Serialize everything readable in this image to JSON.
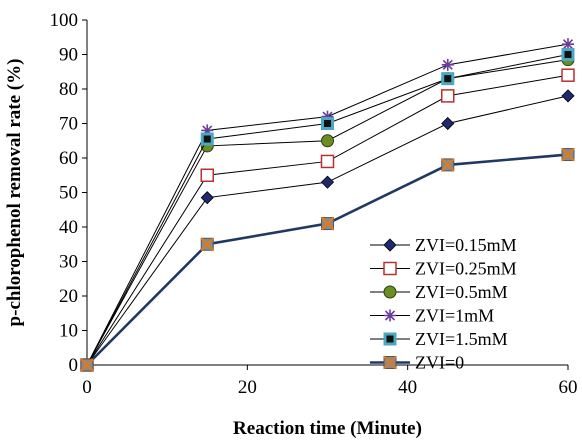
{
  "chart_data": {
    "type": "line",
    "title": "",
    "xlabel": "Reaction time (Minute)",
    "ylabel": "p-chlorophenol removal rate (%)",
    "xlim": [
      0,
      60
    ],
    "ylim": [
      0,
      100
    ],
    "x_ticks": [
      "0",
      "20",
      "40",
      "60"
    ],
    "y_ticks": [
      "0",
      "10",
      "20",
      "30",
      "40",
      "50",
      "60",
      "70",
      "80",
      "90",
      "100"
    ],
    "legend_position": "right",
    "grid": false,
    "x": [
      0,
      15,
      30,
      45,
      60
    ],
    "series": [
      {
        "name": "ZVI=0.15mM",
        "values": [
          0,
          48.5,
          53,
          70,
          78
        ],
        "marker": "diamond",
        "color": "#1f2a6e",
        "line_color": "#000000"
      },
      {
        "name": "ZVI=0.25mM",
        "values": [
          0,
          55,
          59,
          78,
          84
        ],
        "marker": "square-open",
        "color": "#b8312f",
        "line_color": "#000000"
      },
      {
        "name": "ZVI=0.5mM",
        "values": [
          0,
          63.5,
          65,
          83,
          88.5
        ],
        "marker": "circle",
        "color": "#6b8e23",
        "line_color": "#000000"
      },
      {
        "name": "ZVI=1mM",
        "values": [
          0,
          68,
          72,
          87,
          93
        ],
        "marker": "star",
        "color": "#6a3d9a",
        "line_color": "#000000"
      },
      {
        "name": "ZVI=1.5mM",
        "values": [
          0,
          65.5,
          70,
          83,
          90
        ],
        "marker": "square-filled",
        "color": "#4aa8c0",
        "line_color": "#000000"
      },
      {
        "name": "ZVI=0",
        "values": [
          0,
          35,
          41,
          58,
          61
        ],
        "marker": "x-square",
        "color": "#e07a1f",
        "line_color": "#1f3864"
      }
    ]
  }
}
